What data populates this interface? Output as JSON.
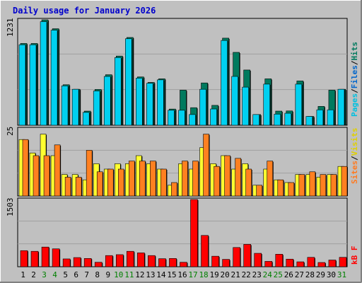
{
  "title": "Daily usage for January 2026",
  "colors": {
    "background": "#c0c0c0",
    "frame_light": "#ffffff",
    "frame_dark": "#808080",
    "gridline": "#a0a0a0",
    "title_text": "#0000cc",
    "weekday_label": "#000000",
    "weekend_label": "#008000",
    "hits": "#007a5e",
    "files": "#00c0e8",
    "pages": "#00d0f0",
    "visits": "#ffff30",
    "sites": "#ff8020",
    "kbytes": "#ff0000"
  },
  "right_labels": {
    "top": {
      "pages": "Pages",
      "files": "Files",
      "hits": "Hits",
      "sep": "/"
    },
    "middle": {
      "sites": "Sites",
      "visits": "Visits",
      "sep": "/"
    },
    "bottom": {
      "kbytes": "kB F"
    }
  },
  "chart_data": [
    {
      "type": "bar",
      "panel": "hits-files-pages",
      "ymax_label": "1231",
      "ylim": [
        0,
        1231
      ],
      "categories": [
        "1",
        "2",
        "3",
        "4",
        "5",
        "6",
        "7",
        "8",
        "9",
        "10",
        "11",
        "12",
        "13",
        "14",
        "15",
        "16",
        "17",
        "18",
        "19",
        "20",
        "21",
        "22",
        "23",
        "24",
        "25",
        "26",
        "27",
        "28",
        "29",
        "30",
        "31"
      ],
      "weekend_days": [
        "3",
        "4",
        "10",
        "11",
        "17",
        "18",
        "24",
        "25",
        "31"
      ],
      "series": [
        {
          "name": "Hits",
          "values": [
            955,
            955,
            1231,
            1127,
            473,
            420,
            165,
            418,
            590,
            808,
            1025,
            564,
            500,
            542,
            189,
            410,
            205,
            494,
            232,
            1017,
            851,
            645,
            125,
            542,
            165,
            167,
            517,
            103,
            220,
            410,
            420
          ]
        },
        {
          "name": "Files",
          "values": [
            940,
            940,
            1210,
            1110,
            460,
            420,
            150,
            400,
            570,
            790,
            1010,
            550,
            490,
            530,
            175,
            175,
            125,
            420,
            190,
            990,
            570,
            445,
            125,
            480,
            130,
            140,
            0,
            0,
            0,
            180,
            420
          ]
        },
        {
          "name": "Pages",
          "values": [
            940,
            940,
            1210,
            1110,
            460,
            420,
            150,
            400,
            570,
            790,
            1010,
            550,
            490,
            530,
            175,
            175,
            125,
            420,
            190,
            990,
            570,
            445,
            125,
            480,
            130,
            140,
            480,
            103,
            180,
            180,
            420
          ]
        }
      ]
    },
    {
      "type": "bar",
      "panel": "visits-sites",
      "ymax_label": "25",
      "ylim": [
        0,
        25
      ],
      "categories": [
        "1",
        "2",
        "3",
        "4",
        "5",
        "6",
        "7",
        "8",
        "9",
        "10",
        "11",
        "12",
        "13",
        "14",
        "15",
        "16",
        "17",
        "18",
        "19",
        "20",
        "21",
        "22",
        "23",
        "24",
        "25",
        "26",
        "27",
        "28",
        "29",
        "30",
        "31"
      ],
      "series": [
        {
          "name": "Visits",
          "values": [
            21,
            16,
            23,
            15,
            8,
            8,
            6,
            12,
            10,
            12,
            12,
            15,
            12,
            10,
            4,
            12,
            10,
            18,
            12,
            15,
            10,
            12,
            4,
            10,
            6,
            5,
            8,
            8,
            7,
            8,
            11
          ]
        },
        {
          "name": "Sites",
          "values": [
            21,
            15,
            15,
            19,
            7,
            7,
            17,
            9,
            10,
            10,
            13,
            13,
            13,
            10,
            5,
            13,
            13,
            23,
            11,
            15,
            14,
            10,
            4,
            13,
            6,
            5,
            8,
            9,
            8,
            8,
            11
          ]
        }
      ]
    },
    {
      "type": "bar",
      "panel": "kbytes",
      "ymax_label": "1503",
      "ylim": [
        0,
        1503
      ],
      "categories": [
        "1",
        "2",
        "3",
        "4",
        "5",
        "6",
        "7",
        "8",
        "9",
        "10",
        "11",
        "12",
        "13",
        "14",
        "15",
        "16",
        "17",
        "18",
        "19",
        "20",
        "21",
        "22",
        "23",
        "24",
        "25",
        "26",
        "27",
        "28",
        "29",
        "30",
        "31"
      ],
      "series": [
        {
          "name": "kB F",
          "values": [
            360,
            345,
            440,
            400,
            175,
            205,
            185,
            100,
            250,
            270,
            345,
            310,
            250,
            180,
            185,
            100,
            1503,
            700,
            235,
            165,
            430,
            500,
            300,
            120,
            280,
            170,
            110,
            210,
            95,
            150,
            210
          ]
        }
      ]
    }
  ]
}
